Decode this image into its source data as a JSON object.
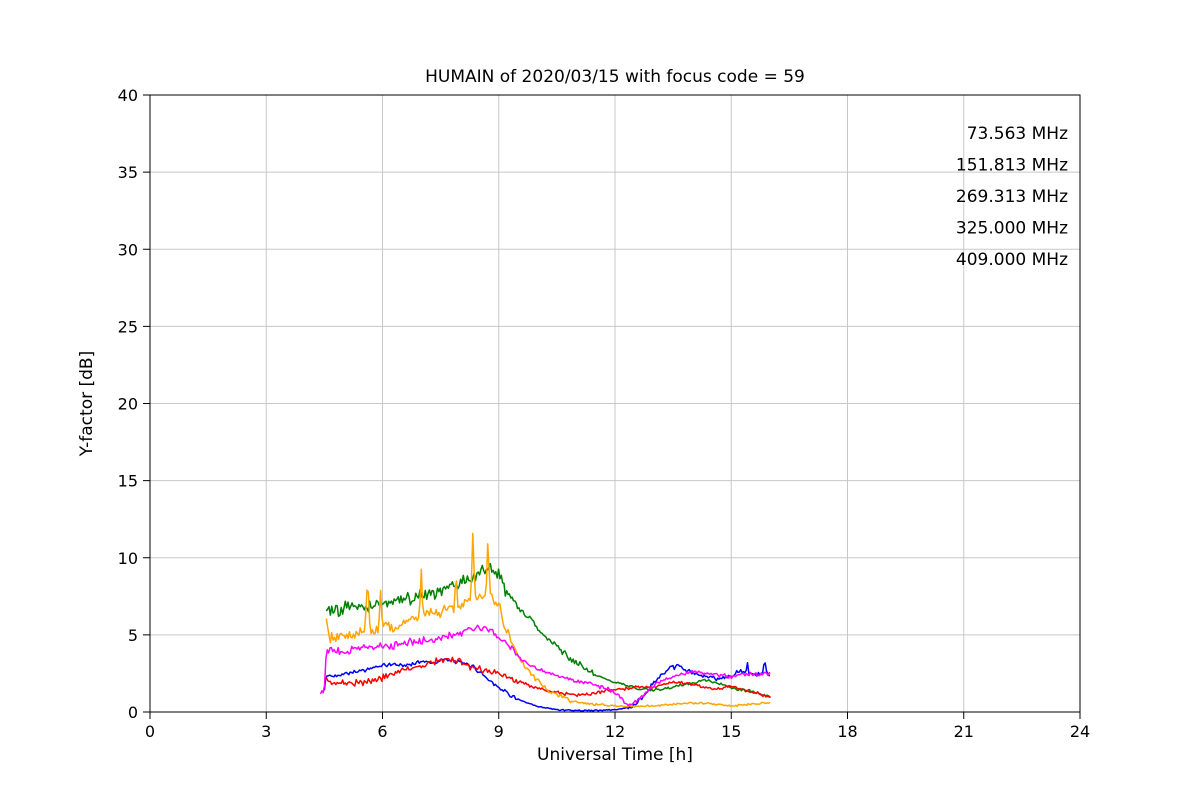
{
  "chart_data": {
    "type": "line",
    "title": "HUMAIN of 2020/03/15 with focus code = 59",
    "xlabel": "Universal Time [h]",
    "ylabel": "Y-factor [dB]",
    "xlim": [
      0,
      24
    ],
    "ylim": [
      0,
      40
    ],
    "xticks": [
      0,
      3,
      6,
      9,
      12,
      15,
      18,
      21,
      24
    ],
    "yticks": [
      0,
      5,
      10,
      15,
      20,
      25,
      30,
      35,
      40
    ],
    "grid": true,
    "grid_color": "#c8c8c8",
    "legend_position": "upper right",
    "series": [
      {
        "name": "73.563 MHz",
        "color": "#0000ff",
        "points": [
          [
            4.5,
            1.4
          ],
          [
            4.55,
            2.4
          ],
          [
            4.7,
            2.3
          ],
          [
            5.0,
            2.5
          ],
          [
            5.5,
            2.7
          ],
          [
            6.0,
            3.0
          ],
          [
            6.3,
            3.1
          ],
          [
            6.6,
            3.0
          ],
          [
            7.0,
            3.3
          ],
          [
            7.3,
            3.2
          ],
          [
            7.6,
            3.4
          ],
          [
            8.0,
            3.2
          ],
          [
            8.3,
            3.0
          ],
          [
            8.6,
            2.4
          ],
          [
            9.0,
            1.6
          ],
          [
            9.3,
            1.1
          ],
          [
            9.6,
            0.7
          ],
          [
            10.0,
            0.35
          ],
          [
            10.5,
            0.15
          ],
          [
            11.0,
            0.1
          ],
          [
            11.5,
            0.1
          ],
          [
            12.0,
            0.15
          ],
          [
            12.4,
            0.3
          ],
          [
            12.7,
            0.9
          ],
          [
            13.0,
            1.9
          ],
          [
            13.3,
            2.6
          ],
          [
            13.6,
            3.0
          ],
          [
            13.8,
            2.8
          ],
          [
            14.0,
            2.5
          ],
          [
            14.3,
            2.3
          ],
          [
            14.6,
            2.2
          ],
          [
            15.0,
            2.3
          ],
          [
            15.2,
            2.6
          ],
          [
            15.37,
            2.5
          ],
          [
            15.41,
            3.3
          ],
          [
            15.45,
            2.5
          ],
          [
            15.6,
            2.4
          ],
          [
            15.82,
            2.5
          ],
          [
            15.86,
            3.4
          ],
          [
            15.9,
            2.6
          ],
          [
            16.0,
            2.3
          ]
        ],
        "noise": [
          [
            4.5,
            9.5,
            0.15
          ],
          [
            9.5,
            12.3,
            0.05
          ],
          [
            12.3,
            16.0,
            0.2
          ]
        ]
      },
      {
        "name": "151.813 MHz",
        "color": "#008000",
        "points": [
          [
            4.55,
            6.9
          ],
          [
            4.7,
            6.4
          ],
          [
            5.0,
            6.7
          ],
          [
            5.3,
            6.9
          ],
          [
            5.6,
            6.8
          ],
          [
            6.0,
            7.1
          ],
          [
            6.4,
            7.3
          ],
          [
            6.8,
            7.4
          ],
          [
            7.2,
            7.7
          ],
          [
            7.6,
            7.9
          ],
          [
            8.0,
            8.3
          ],
          [
            8.4,
            8.8
          ],
          [
            8.7,
            9.2
          ],
          [
            9.0,
            9.0
          ],
          [
            9.2,
            7.8
          ],
          [
            9.5,
            6.8
          ],
          [
            9.8,
            6.0
          ],
          [
            10.1,
            5.2
          ],
          [
            10.5,
            4.2
          ],
          [
            11.0,
            3.2
          ],
          [
            11.5,
            2.4
          ],
          [
            12.0,
            1.9
          ],
          [
            12.5,
            1.6
          ],
          [
            13.0,
            1.4
          ],
          [
            13.3,
            1.5
          ],
          [
            13.6,
            1.7
          ],
          [
            14.0,
            1.9
          ],
          [
            14.3,
            2.1
          ],
          [
            14.6,
            1.9
          ],
          [
            15.0,
            1.6
          ],
          [
            15.3,
            1.4
          ],
          [
            15.6,
            1.3
          ],
          [
            16.0,
            1.0
          ]
        ],
        "noise": [
          [
            4.5,
            9.2,
            0.5
          ],
          [
            9.2,
            11.5,
            0.25
          ],
          [
            11.5,
            16.0,
            0.12
          ]
        ]
      },
      {
        "name": "269.313 MHz",
        "color": "#ff0000",
        "points": [
          [
            4.55,
            2.1
          ],
          [
            4.7,
            1.9
          ],
          [
            5.0,
            1.85
          ],
          [
            5.4,
            1.9
          ],
          [
            5.8,
            2.0
          ],
          [
            6.2,
            2.4
          ],
          [
            6.6,
            2.7
          ],
          [
            7.0,
            3.0
          ],
          [
            7.4,
            3.3
          ],
          [
            7.7,
            3.4
          ],
          [
            8.0,
            3.3
          ],
          [
            8.3,
            2.9
          ],
          [
            8.6,
            2.7
          ],
          [
            9.0,
            2.5
          ],
          [
            9.4,
            2.1
          ],
          [
            9.8,
            1.7
          ],
          [
            10.2,
            1.4
          ],
          [
            10.6,
            1.2
          ],
          [
            11.0,
            1.1
          ],
          [
            11.4,
            1.2
          ],
          [
            11.8,
            1.4
          ],
          [
            12.2,
            1.5
          ],
          [
            12.6,
            1.6
          ],
          [
            13.0,
            1.6
          ],
          [
            13.4,
            1.9
          ],
          [
            13.7,
            1.9
          ],
          [
            14.0,
            1.8
          ],
          [
            14.3,
            1.6
          ],
          [
            14.6,
            1.5
          ],
          [
            15.0,
            1.7
          ],
          [
            15.4,
            1.4
          ],
          [
            15.7,
            1.2
          ],
          [
            16.0,
            0.9
          ]
        ],
        "noise": [
          [
            4.5,
            9.5,
            0.25
          ],
          [
            9.5,
            16.0,
            0.12
          ]
        ]
      },
      {
        "name": "325.000 MHz",
        "color": "#ffa500",
        "points": [
          [
            4.55,
            5.9
          ],
          [
            4.65,
            4.7
          ],
          [
            5.0,
            5.0
          ],
          [
            5.3,
            5.1
          ],
          [
            5.55,
            5.2
          ],
          [
            5.62,
            8.8
          ],
          [
            5.68,
            5.2
          ],
          [
            5.9,
            5.3
          ],
          [
            5.95,
            8.0
          ],
          [
            6.0,
            5.35
          ],
          [
            6.3,
            5.6
          ],
          [
            6.6,
            5.9
          ],
          [
            6.95,
            6.2
          ],
          [
            7.0,
            9.3
          ],
          [
            7.05,
            6.25
          ],
          [
            7.4,
            6.4
          ],
          [
            7.7,
            6.6
          ],
          [
            7.85,
            6.7
          ],
          [
            7.9,
            8.9
          ],
          [
            7.95,
            6.8
          ],
          [
            8.1,
            7.1
          ],
          [
            8.28,
            7.2
          ],
          [
            8.33,
            11.7
          ],
          [
            8.39,
            7.3
          ],
          [
            8.55,
            7.5
          ],
          [
            8.67,
            7.5
          ],
          [
            8.72,
            11.2
          ],
          [
            8.78,
            7.4
          ],
          [
            9.0,
            7.0
          ],
          [
            9.1,
            6.0
          ],
          [
            9.3,
            4.6
          ],
          [
            9.6,
            3.2
          ],
          [
            9.9,
            2.3
          ],
          [
            10.2,
            1.6
          ],
          [
            10.5,
            1.1
          ],
          [
            10.8,
            0.8
          ],
          [
            11.1,
            0.6
          ],
          [
            11.5,
            0.5
          ],
          [
            12.0,
            0.4
          ],
          [
            12.5,
            0.35
          ],
          [
            13.0,
            0.4
          ],
          [
            13.5,
            0.5
          ],
          [
            14.0,
            0.6
          ],
          [
            14.5,
            0.55
          ],
          [
            15.0,
            0.4
          ],
          [
            15.5,
            0.5
          ],
          [
            16.0,
            0.6
          ]
        ],
        "noise": [
          [
            4.5,
            9.3,
            0.45
          ],
          [
            9.3,
            11.0,
            0.2
          ],
          [
            11.0,
            16.0,
            0.08
          ]
        ]
      },
      {
        "name": "409.000 MHz",
        "color": "#ff00ff",
        "points": [
          [
            4.4,
            1.3
          ],
          [
            4.5,
            1.5
          ],
          [
            4.55,
            4.0
          ],
          [
            4.8,
            3.9
          ],
          [
            5.1,
            4.0
          ],
          [
            5.5,
            4.1
          ],
          [
            5.9,
            4.2
          ],
          [
            6.3,
            4.3
          ],
          [
            6.7,
            4.5
          ],
          [
            7.1,
            4.6
          ],
          [
            7.5,
            4.8
          ],
          [
            7.9,
            5.1
          ],
          [
            8.2,
            5.3
          ],
          [
            8.5,
            5.5
          ],
          [
            8.8,
            5.3
          ],
          [
            9.0,
            4.9
          ],
          [
            9.3,
            4.1
          ],
          [
            9.6,
            3.4
          ],
          [
            9.9,
            2.9
          ],
          [
            10.2,
            2.6
          ],
          [
            10.6,
            2.3
          ],
          [
            11.0,
            2.0
          ],
          [
            11.4,
            1.8
          ],
          [
            11.8,
            1.5
          ],
          [
            12.1,
            1.1
          ],
          [
            12.3,
            0.5
          ],
          [
            12.5,
            0.6
          ],
          [
            12.8,
            1.2
          ],
          [
            13.1,
            1.9
          ],
          [
            13.4,
            2.2
          ],
          [
            13.7,
            2.4
          ],
          [
            14.0,
            2.6
          ],
          [
            14.3,
            2.5
          ],
          [
            14.6,
            2.4
          ],
          [
            15.0,
            2.3
          ],
          [
            15.3,
            2.5
          ],
          [
            15.6,
            2.4
          ],
          [
            16.0,
            2.5
          ]
        ],
        "noise": [
          [
            4.4,
            9.5,
            0.3
          ],
          [
            9.5,
            16.0,
            0.15
          ]
        ]
      }
    ]
  }
}
